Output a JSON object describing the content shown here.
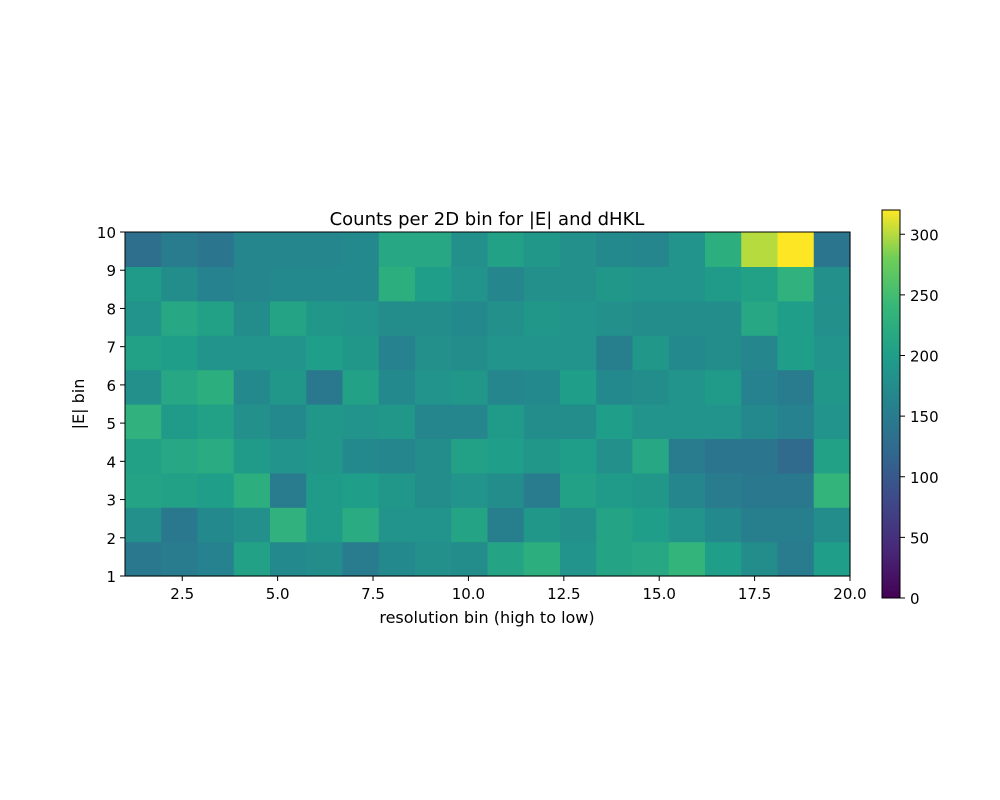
{
  "chart_data": {
    "type": "heatmap",
    "title": "Counts per 2D bin for |E| and dHKL",
    "xlabel": "resolution bin (high to low)",
    "ylabel": "|E| bin",
    "xlim": [
      1,
      20
    ],
    "ylim": [
      1,
      10
    ],
    "x_ticks": [
      "2.5",
      "5.0",
      "7.5",
      "10.0",
      "12.5",
      "15.0",
      "17.5",
      "20.0"
    ],
    "x_tick_values": [
      2.5,
      5.0,
      7.5,
      10.0,
      12.5,
      15.0,
      17.5,
      20.0
    ],
    "y_ticks": [
      "1",
      "2",
      "3",
      "4",
      "5",
      "6",
      "7",
      "8",
      "9",
      "10"
    ],
    "y_tick_values": [
      1,
      2,
      3,
      4,
      5,
      6,
      7,
      8,
      9,
      10
    ],
    "colorbar": {
      "range": [
        0,
        320
      ],
      "ticks": [
        "0",
        "50",
        "100",
        "150",
        "200",
        "250",
        "300"
      ],
      "tick_values": [
        0,
        50,
        100,
        150,
        200,
        250,
        300
      ],
      "colormap": "viridis"
    },
    "rows_y_low_to_high": [
      [
        145,
        150,
        160,
        205,
        170,
        175,
        150,
        170,
        180,
        175,
        210,
        225,
        185,
        210,
        215,
        235,
        200,
        175,
        150,
        200
      ],
      [
        180,
        145,
        170,
        180,
        230,
        195,
        220,
        185,
        185,
        210,
        155,
        190,
        180,
        210,
        200,
        185,
        170,
        155,
        155,
        175
      ],
      [
        210,
        205,
        200,
        225,
        150,
        195,
        200,
        190,
        175,
        185,
        175,
        150,
        205,
        195,
        190,
        165,
        150,
        145,
        145,
        235
      ],
      [
        205,
        215,
        220,
        195,
        185,
        190,
        170,
        165,
        175,
        205,
        200,
        190,
        200,
        180,
        215,
        150,
        140,
        140,
        125,
        205
      ],
      [
        230,
        195,
        205,
        180,
        170,
        190,
        185,
        190,
        165,
        165,
        195,
        175,
        175,
        200,
        185,
        185,
        185,
        170,
        160,
        185
      ],
      [
        180,
        215,
        225,
        170,
        190,
        145,
        205,
        170,
        185,
        190,
        165,
        170,
        200,
        170,
        175,
        185,
        195,
        160,
        150,
        190
      ],
      [
        205,
        200,
        185,
        185,
        185,
        200,
        190,
        160,
        180,
        175,
        185,
        185,
        185,
        155,
        190,
        170,
        175,
        165,
        200,
        185
      ],
      [
        185,
        215,
        205,
        175,
        210,
        190,
        185,
        175,
        175,
        170,
        180,
        190,
        185,
        180,
        175,
        175,
        175,
        215,
        200,
        180
      ],
      [
        195,
        175,
        160,
        165,
        170,
        170,
        170,
        225,
        200,
        185,
        165,
        180,
        180,
        190,
        185,
        185,
        195,
        205,
        230,
        180
      ],
      [
        130,
        150,
        140,
        165,
        165,
        165,
        170,
        215,
        215,
        180,
        205,
        190,
        180,
        170,
        165,
        185,
        225,
        300,
        320,
        140
      ]
    ]
  }
}
